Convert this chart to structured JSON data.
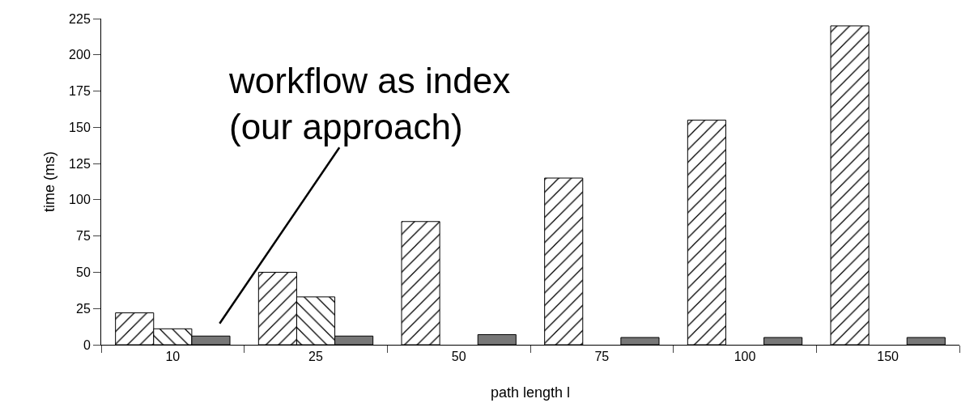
{
  "chart_data": {
    "type": "bar",
    "xlabel": "path length l",
    "ylabel": "time (ms)",
    "categories": [
      "10",
      "25",
      "50",
      "75",
      "100",
      "150"
    ],
    "series": [
      {
        "color": "#000000",
        "values": [
          22,
          50,
          85,
          115,
          155,
          220
        ]
      },
      {
        "color": "#000000",
        "values": [
          11,
          33,
          null,
          null,
          null,
          null
        ]
      },
      {
        "color": "#777777",
        "values": [
          6,
          6,
          7,
          5,
          5,
          5
        ]
      }
    ],
    "ylim": [
      0,
      225
    ],
    "yticks": [
      0,
      25,
      50,
      75,
      100,
      125,
      150,
      175,
      200,
      225
    ],
    "grid": false,
    "annotations": [
      "workflow as index\n(our approach)"
    ]
  }
}
